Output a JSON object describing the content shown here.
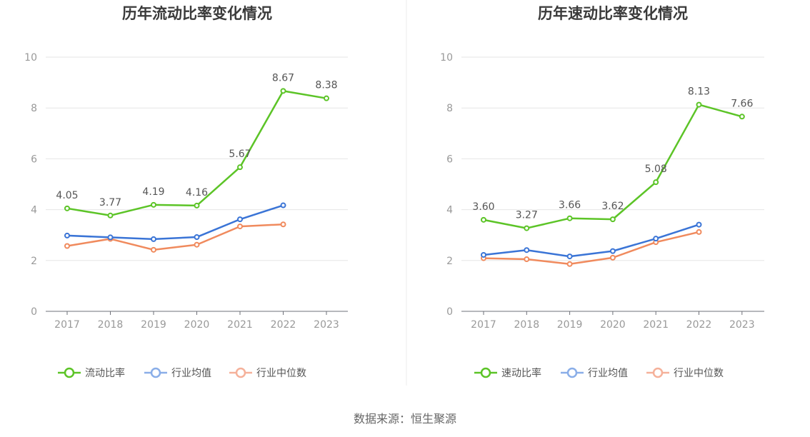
{
  "chart_data": [
    {
      "type": "line",
      "title": "历年流动比率变化情况",
      "categories": [
        "2017",
        "2018",
        "2019",
        "2020",
        "2021",
        "2022",
        "2023"
      ],
      "ylim": [
        0,
        10
      ],
      "yticks": [
        0,
        2,
        4,
        6,
        8,
        10
      ],
      "grid": true,
      "legend_position": "bottom",
      "series": [
        {
          "name": "流动比率",
          "color": "#5cc427",
          "values": [
            4.05,
            3.77,
            4.19,
            4.16,
            5.67,
            8.67,
            8.38
          ],
          "labels": [
            "4.05",
            "3.77",
            "4.19",
            "4.16",
            "5.67",
            "8.67",
            "8.38"
          ]
        },
        {
          "name": "行业均值",
          "color": "#3a74d6",
          "legend_color": "#8aaee8",
          "values": [
            2.98,
            2.91,
            2.84,
            2.92,
            3.62,
            4.17,
            null
          ]
        },
        {
          "name": "行业中位数",
          "color": "#f08a5d",
          "legend_color": "#f5b19a",
          "values": [
            2.57,
            2.85,
            2.42,
            2.62,
            3.34,
            3.42,
            null
          ]
        }
      ]
    },
    {
      "type": "line",
      "title": "历年速动比率变化情况",
      "categories": [
        "2017",
        "2018",
        "2019",
        "2020",
        "2021",
        "2022",
        "2023"
      ],
      "ylim": [
        0,
        10
      ],
      "yticks": [
        0,
        2,
        4,
        6,
        8,
        10
      ],
      "grid": true,
      "legend_position": "bottom",
      "series": [
        {
          "name": "速动比率",
          "color": "#5cc427",
          "values": [
            3.6,
            3.27,
            3.66,
            3.62,
            5.08,
            8.13,
            7.66
          ],
          "labels": [
            "3.60",
            "3.27",
            "3.66",
            "3.62",
            "5.08",
            "8.13",
            "7.66"
          ]
        },
        {
          "name": "行业均值",
          "color": "#3a74d6",
          "legend_color": "#8aaee8",
          "values": [
            2.22,
            2.41,
            2.16,
            2.37,
            2.86,
            3.41,
            null
          ]
        },
        {
          "name": "行业中位数",
          "color": "#f08a5d",
          "legend_color": "#f5b19a",
          "values": [
            2.09,
            2.05,
            1.86,
            2.11,
            2.72,
            3.12,
            null
          ]
        }
      ]
    }
  ],
  "source_text": "数据来源：恒生聚源"
}
